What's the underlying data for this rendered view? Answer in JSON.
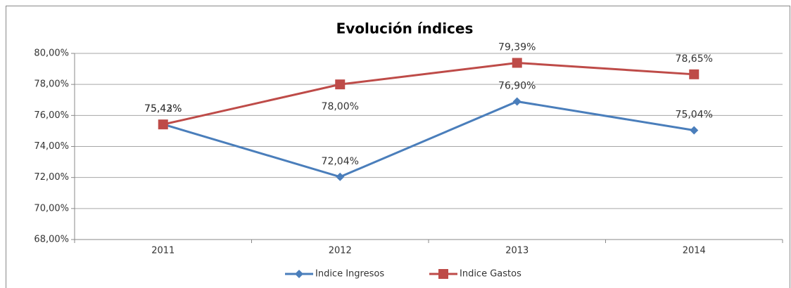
{
  "chart_data": {
    "type": "line",
    "title": "Evolución índices",
    "categories": [
      "2011",
      "2012",
      "2013",
      "2014"
    ],
    "series": [
      {
        "name": "Indice Ingresos",
        "color": "#4a7ebb",
        "marker": "diamond",
        "values": [
          75.43,
          72.04,
          76.9,
          75.04
        ],
        "value_labels": [
          "75,43%",
          "72,04%",
          "76,90%",
          "75,04%"
        ]
      },
      {
        "name": "Indice Gastos",
        "color": "#be4b48",
        "marker": "square",
        "values": [
          75.42,
          78.0,
          79.39,
          78.65
        ],
        "value_labels": [
          "75,42%",
          "78,00%",
          "79,39%",
          "78,65%"
        ]
      }
    ],
    "ylim": [
      68,
      80
    ],
    "yticks": [
      {
        "value": 68,
        "label": "68,00%"
      },
      {
        "value": 70,
        "label": "70,00%"
      },
      {
        "value": 72,
        "label": "72,00%"
      },
      {
        "value": 74,
        "label": "74,00%"
      },
      {
        "value": 76,
        "label": "76,00%"
      },
      {
        "value": 78,
        "label": "78,00%"
      },
      {
        "value": 80,
        "label": "80,00%"
      }
    ],
    "grid": true,
    "legend": "bottom"
  }
}
